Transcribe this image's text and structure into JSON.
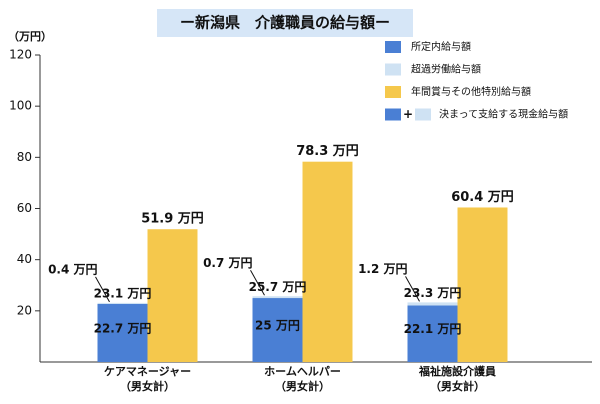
{
  "chart_data": {
    "type": "bar",
    "title": "ー新潟県　介護職員の給与額ー",
    "unit_label": "（万円）",
    "categories": [
      [
        "ケアマネージャー",
        "（男女計）"
      ],
      [
        "ホームヘルパー",
        "（男女計）"
      ],
      [
        "福祉施設介護員",
        "（男女計）"
      ]
    ],
    "series": [
      {
        "name": "所定内給与額",
        "color": "#4a7fd4",
        "values": [
          22.7,
          25,
          22.1
        ],
        "value_labels": [
          "22.7 万円",
          "25 万円",
          "22.1 万円"
        ]
      },
      {
        "name": "超過労働給与額",
        "color": "#cfe2f3",
        "values": [
          0.4,
          0.7,
          1.2
        ],
        "value_labels": [
          "0.4 万円",
          "0.7 万円",
          "1.2 万円"
        ]
      },
      {
        "name": "年間賞与その他特別給与額",
        "color": "#f5c84c",
        "values": [
          51.9,
          78.3,
          60.4
        ],
        "value_labels": [
          "51.9 万円",
          "78.3 万円",
          "60.4 万円"
        ]
      }
    ],
    "totals": {
      "name": "決まって支給する現金給与額",
      "legend_joiner": "+",
      "values": [
        23.1,
        25.7,
        23.3
      ],
      "value_labels": [
        "23.1 万円",
        "25.7 万円",
        "23.3 万円"
      ]
    },
    "ylim": [
      0,
      120
    ],
    "yticks": [
      20,
      40,
      60,
      80,
      100,
      120
    ],
    "legend": "top-right"
  }
}
